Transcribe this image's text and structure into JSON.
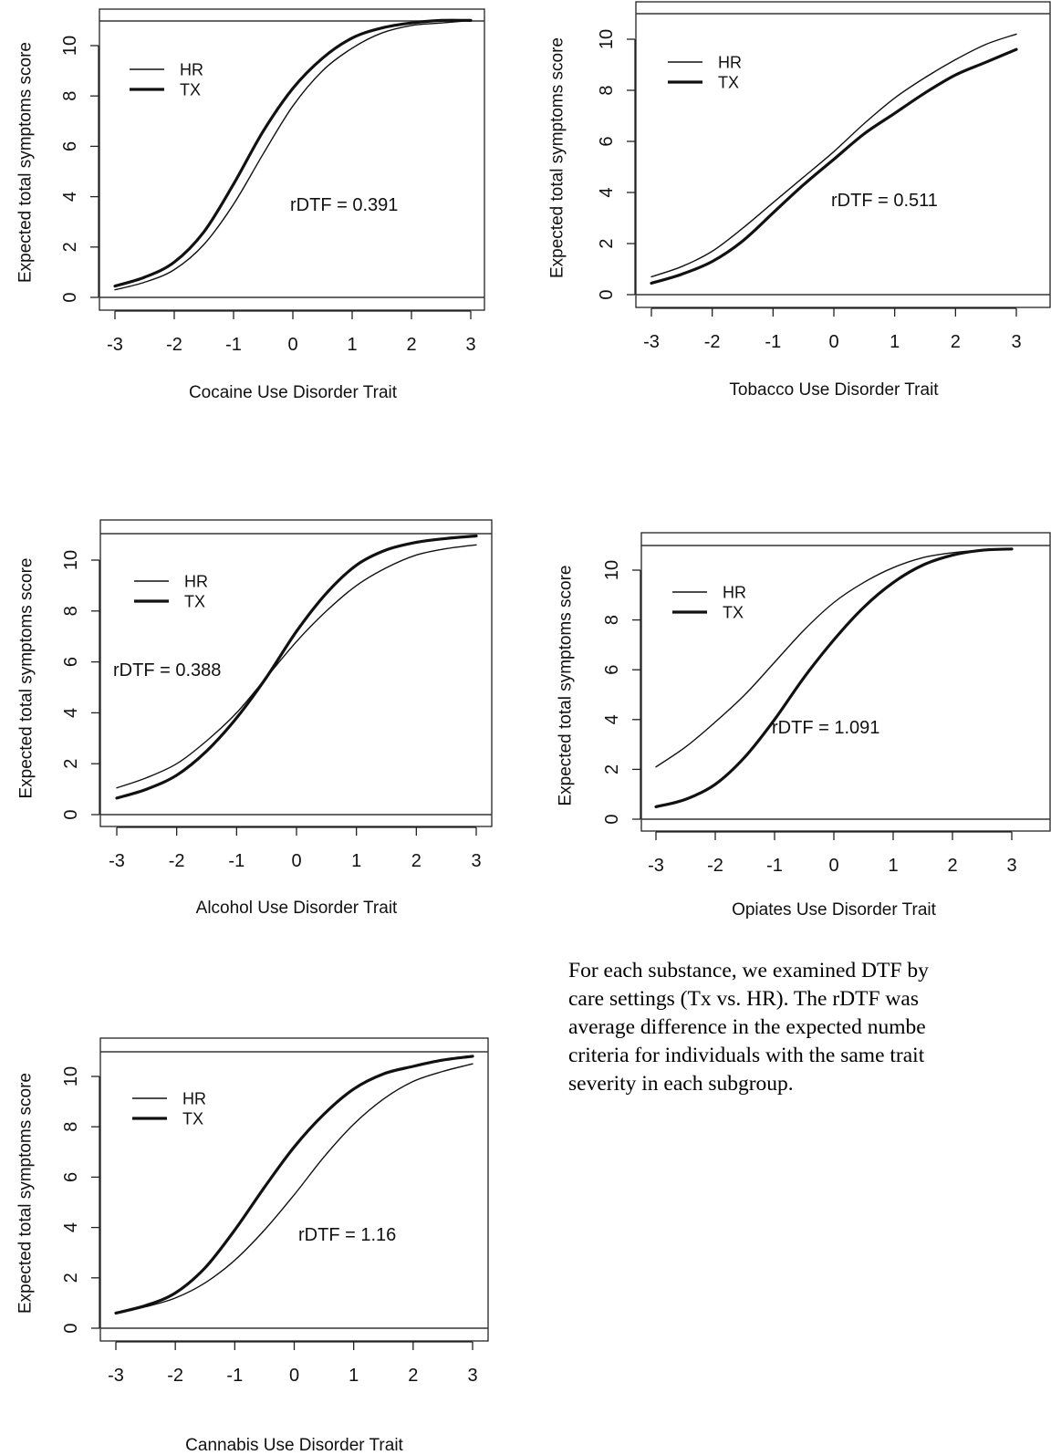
{
  "charts": [
    {
      "type": "line",
      "xlabel": "Cocaine Use Disorder Trait",
      "ylabel": "Expected total symptoms score",
      "xlim": [
        -3,
        3
      ],
      "ylim": [
        0,
        11
      ],
      "xticks": [
        -3,
        -2,
        -1,
        0,
        1,
        2,
        3
      ],
      "yticks": [
        0,
        2,
        4,
        6,
        8,
        10
      ],
      "legend": {
        "position": "top-left",
        "entries": [
          "HR",
          "TX"
        ]
      },
      "annotation": "rDTF =  0.391",
      "series": [
        {
          "name": "HR",
          "line": "thin",
          "x": [
            -3,
            -2.5,
            -2,
            -1.5,
            -1,
            -0.5,
            0,
            0.5,
            1,
            1.5,
            2,
            2.5,
            3
          ],
          "y": [
            0.3,
            0.6,
            1.1,
            2.1,
            3.7,
            5.7,
            7.6,
            9.0,
            9.9,
            10.5,
            10.8,
            10.9,
            11.0
          ]
        },
        {
          "name": "TX",
          "line": "thick",
          "x": [
            -3,
            -2.5,
            -2,
            -1.5,
            -1,
            -0.5,
            0,
            0.5,
            1,
            1.5,
            2,
            2.5,
            3
          ],
          "y": [
            0.45,
            0.8,
            1.4,
            2.6,
            4.5,
            6.6,
            8.3,
            9.5,
            10.3,
            10.7,
            10.9,
            11.0,
            11.0
          ]
        }
      ]
    },
    {
      "type": "line",
      "xlabel": "Tobacco Use Disorder Trait",
      "ylabel": "Expected total symptoms score",
      "xlim": [
        -3,
        3
      ],
      "ylim": [
        0,
        11
      ],
      "xticks": [
        -3,
        -2,
        -1,
        0,
        1,
        2,
        3
      ],
      "yticks": [
        0,
        2,
        4,
        6,
        8,
        10
      ],
      "legend": {
        "position": "top-left",
        "entries": [
          "HR",
          "TX"
        ]
      },
      "annotation": "rDTF =  0.511",
      "series": [
        {
          "name": "HR",
          "line": "thin",
          "x": [
            -3,
            -2.5,
            -2,
            -1.5,
            -1,
            -0.5,
            0,
            0.5,
            1,
            1.5,
            2,
            2.5,
            3
          ],
          "y": [
            0.7,
            1.1,
            1.7,
            2.6,
            3.6,
            4.6,
            5.6,
            6.7,
            7.7,
            8.5,
            9.2,
            9.8,
            10.2
          ]
        },
        {
          "name": "TX",
          "line": "thick",
          "x": [
            -3,
            -2.5,
            -2,
            -1.5,
            -1,
            -0.5,
            0,
            0.5,
            1,
            1.5,
            2,
            2.5,
            3
          ],
          "y": [
            0.45,
            0.8,
            1.3,
            2.1,
            3.2,
            4.3,
            5.3,
            6.3,
            7.1,
            7.9,
            8.6,
            9.1,
            9.6
          ]
        }
      ]
    },
    {
      "type": "line",
      "xlabel": "Alcohol Use Disorder Trait",
      "ylabel": "Expected total symptoms score",
      "xlim": [
        -3,
        3
      ],
      "ylim": [
        0,
        11
      ],
      "xticks": [
        -3,
        -2,
        -1,
        0,
        1,
        2,
        3
      ],
      "yticks": [
        0,
        2,
        4,
        6,
        8,
        10
      ],
      "legend": {
        "position": "top-left",
        "entries": [
          "HR",
          "TX"
        ]
      },
      "annotation": "rDTF =  0.388",
      "series": [
        {
          "name": "HR",
          "line": "thin",
          "x": [
            -3,
            -2.5,
            -2,
            -1.5,
            -1,
            -0.5,
            0,
            0.5,
            1,
            1.5,
            2,
            2.5,
            3
          ],
          "y": [
            1.05,
            1.45,
            2.0,
            2.9,
            4.0,
            5.4,
            6.8,
            8.0,
            9.0,
            9.7,
            10.2,
            10.45,
            10.6
          ]
        },
        {
          "name": "TX",
          "line": "thick",
          "x": [
            -3,
            -2.5,
            -2,
            -1.5,
            -1,
            -0.5,
            0,
            0.5,
            1,
            1.5,
            2,
            2.5,
            3
          ],
          "y": [
            0.65,
            1.0,
            1.55,
            2.5,
            3.8,
            5.4,
            7.2,
            8.7,
            9.8,
            10.4,
            10.7,
            10.85,
            10.95
          ]
        }
      ]
    },
    {
      "type": "line",
      "xlabel": "Opiates Use Disorder Trait",
      "ylabel": "Expected total symptoms score",
      "xlim": [
        -3,
        3
      ],
      "ylim": [
        0,
        11
      ],
      "xticks": [
        -3,
        -2,
        -1,
        0,
        1,
        2,
        3
      ],
      "yticks": [
        0,
        2,
        4,
        6,
        8,
        10
      ],
      "legend": {
        "position": "top-left",
        "entries": [
          "HR",
          "TX"
        ]
      },
      "annotation": "rDTF =  1.091",
      "series": [
        {
          "name": "HR",
          "line": "thin",
          "x": [
            -3,
            -2.5,
            -2,
            -1.5,
            -1,
            -0.5,
            0,
            0.5,
            1,
            1.5,
            2,
            2.5,
            3
          ],
          "y": [
            2.1,
            2.9,
            3.9,
            5.0,
            6.3,
            7.6,
            8.7,
            9.5,
            10.1,
            10.5,
            10.7,
            10.8,
            10.85
          ]
        },
        {
          "name": "TX",
          "line": "thick",
          "x": [
            -3,
            -2.5,
            -2,
            -1.5,
            -1,
            -0.5,
            0,
            0.5,
            1,
            1.5,
            2,
            2.5,
            3
          ],
          "y": [
            0.5,
            0.8,
            1.4,
            2.5,
            4.0,
            5.7,
            7.2,
            8.5,
            9.5,
            10.2,
            10.6,
            10.8,
            10.85
          ]
        }
      ]
    },
    {
      "type": "line",
      "xlabel": "Cannabis Use Disorder Trait",
      "ylabel": "Expected total symptoms score",
      "xlim": [
        -3,
        3
      ],
      "ylim": [
        0,
        11
      ],
      "xticks": [
        -3,
        -2,
        -1,
        0,
        1,
        2,
        3
      ],
      "yticks": [
        0,
        2,
        4,
        6,
        8,
        10
      ],
      "legend": {
        "position": "top-left",
        "entries": [
          "HR",
          "TX"
        ]
      },
      "annotation": "rDTF =  1.16",
      "series": [
        {
          "name": "HR",
          "line": "thin",
          "x": [
            -3,
            -2.5,
            -2,
            -1.5,
            -1,
            -0.5,
            0,
            0.5,
            1,
            1.5,
            2,
            2.5,
            3
          ],
          "y": [
            0.6,
            0.85,
            1.2,
            1.8,
            2.7,
            3.9,
            5.3,
            6.8,
            8.1,
            9.1,
            9.8,
            10.2,
            10.5
          ]
        },
        {
          "name": "TX",
          "line": "thick",
          "x": [
            -3,
            -2.5,
            -2,
            -1.5,
            -1,
            -0.5,
            0,
            0.5,
            1,
            1.5,
            2,
            2.5,
            3
          ],
          "y": [
            0.6,
            0.9,
            1.4,
            2.4,
            3.9,
            5.6,
            7.2,
            8.5,
            9.5,
            10.1,
            10.4,
            10.65,
            10.8
          ]
        }
      ]
    }
  ],
  "caption": {
    "lines": [
      "For each substance, we examined DTF by",
      "care settings (Tx vs. HR). The rDTF was",
      "average difference in the expected numbe",
      "criteria for individuals with the same trait",
      "severity in each subgroup."
    ]
  }
}
